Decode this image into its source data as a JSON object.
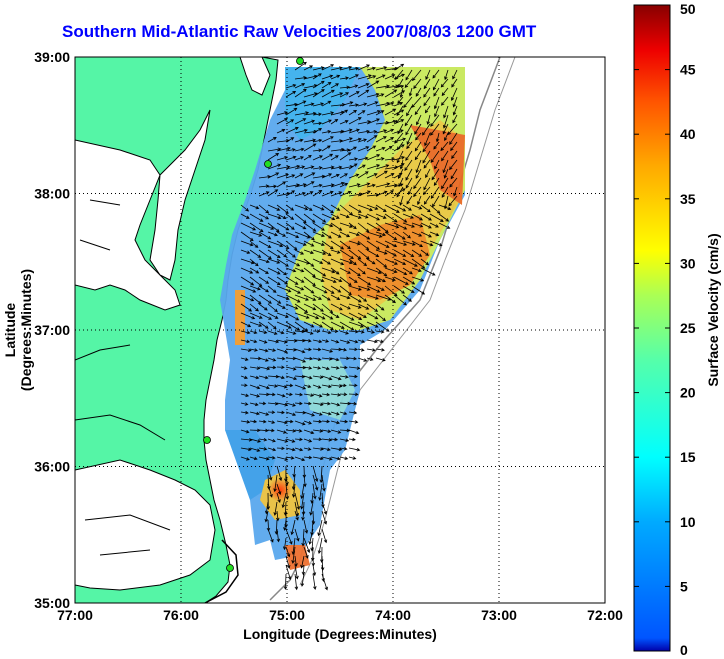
{
  "map": {
    "title": "Southern Mid-Atlantic Raw Velocities 2007/08/03 1200 GMT",
    "xlabel": "Longitude (Degrees:Minutes)",
    "ylabel": "Latitude (Degrees:Minutes)",
    "lon_ticks": [
      "77:00",
      "76:00",
      "75:00",
      "74:00",
      "73:00",
      "72:00"
    ],
    "lat_ticks": [
      "39:00",
      "38:00",
      "37:00",
      "36:00",
      "35:00"
    ],
    "lon_range": [
      -77,
      -72
    ],
    "lat_range": [
      35,
      39
    ],
    "colors": {
      "title": "#0000ff",
      "land": "#55f5a6",
      "coast": "#000000",
      "stations": "#22dd22"
    }
  },
  "colorbar": {
    "label": "Surface Velocity (cm/s)",
    "ticks": [
      "0",
      "5",
      "10",
      "15",
      "20",
      "25",
      "30",
      "35",
      "40",
      "45",
      "50"
    ],
    "range": [
      0,
      50
    ],
    "colormap": "jet"
  }
}
